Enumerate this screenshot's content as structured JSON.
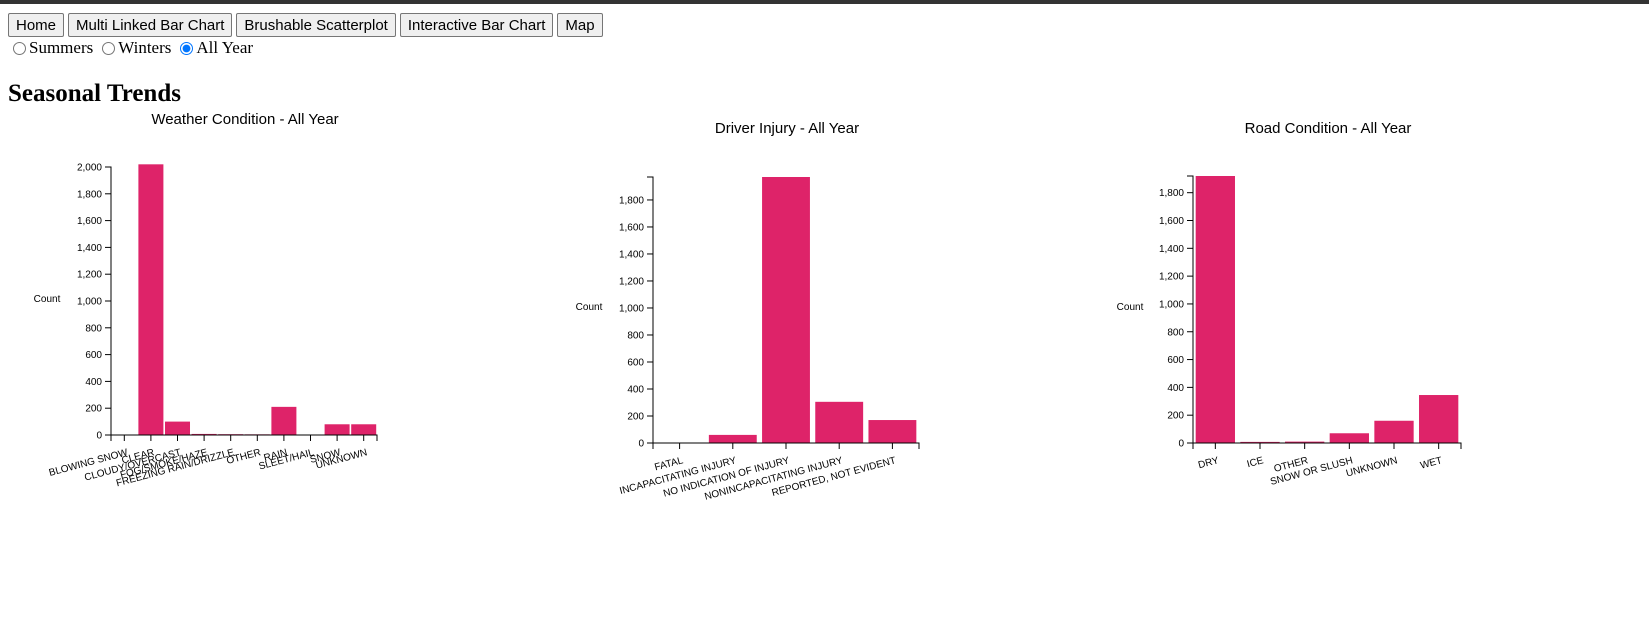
{
  "nav": {
    "buttons": [
      "Home",
      "Multi Linked Bar Chart",
      "Brushable Scatterplot",
      "Interactive Bar Chart",
      "Map"
    ]
  },
  "season_filter": {
    "options": [
      "Summers",
      "Winters",
      "All Year"
    ],
    "selected": "All Year"
  },
  "page": {
    "title": "Seasonal Trends"
  },
  "colors": {
    "bar": "#de2369",
    "axis": "#000000"
  },
  "chart_data": [
    {
      "type": "bar",
      "title": "Weather Condition - All Year",
      "xlabel": "",
      "ylabel": "Count",
      "ylim": [
        0,
        2000
      ],
      "yticks": [
        0,
        200,
        400,
        600,
        800,
        1000,
        1200,
        1400,
        1600,
        1800,
        2000
      ],
      "categories": [
        "BLOWING SNOW",
        "CLEAR",
        "CLOUDY/OVERCAST",
        "FOG/SMOKE/HAZE",
        "FREEZING RAIN/DRIZZLE",
        "OTHER",
        "RAIN",
        "SLEET/HAIL",
        "SNOW",
        "UNKNOWN"
      ],
      "values": [
        1,
        2020,
        100,
        8,
        6,
        5,
        210,
        2,
        80,
        80
      ],
      "color": "#de2369"
    },
    {
      "type": "bar",
      "title": "Driver Injury - All Year",
      "xlabel": "",
      "ylabel": "Count",
      "ylim": [
        0,
        1970
      ],
      "yticks": [
        0,
        200,
        400,
        600,
        800,
        1000,
        1200,
        1400,
        1600,
        1800
      ],
      "categories": [
        "FATAL",
        "INCAPACITATING INJURY",
        "NO INDICATION OF INJURY",
        "NONINCAPACITATING INJURY",
        "REPORTED, NOT EVIDENT"
      ],
      "values": [
        2,
        60,
        1970,
        305,
        170
      ],
      "color": "#de2369"
    },
    {
      "type": "bar",
      "title": "Road Condition - All Year",
      "xlabel": "",
      "ylabel": "Count",
      "ylim": [
        0,
        1920
      ],
      "yticks": [
        0,
        200,
        400,
        600,
        800,
        1000,
        1200,
        1400,
        1600,
        1800
      ],
      "categories": [
        "DRY",
        "ICE",
        "OTHER",
        "SNOW OR SLUSH",
        "UNKNOWN",
        "WET"
      ],
      "values": [
        1920,
        8,
        10,
        70,
        160,
        345
      ],
      "color": "#de2369"
    }
  ]
}
